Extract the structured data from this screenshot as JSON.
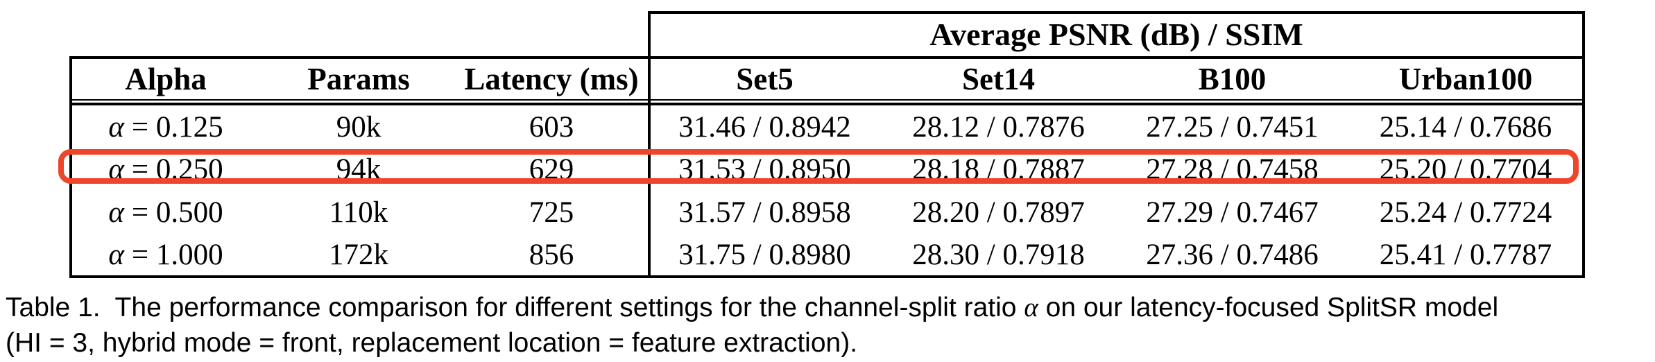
{
  "table": {
    "span_header": "Average PSNR (dB) / SSIM",
    "left_headers": [
      "Alpha",
      "Params",
      "Latency (ms)"
    ],
    "dataset_headers": [
      "Set5",
      "Set14",
      "B100",
      "Urban100"
    ],
    "alpha_symbol": "α",
    "rows": [
      {
        "alpha": "α = 0.125",
        "alpha_eq": "= 0.125",
        "params": "90k",
        "latency": "603",
        "set5": "31.46 / 0.8942",
        "set14": "28.12 / 0.7876",
        "b100": "27.25 / 0.7451",
        "urban100": "25.14 / 0.7686",
        "highlighted": false
      },
      {
        "alpha": "α = 0.250",
        "alpha_eq": "= 0.250",
        "params": "94k",
        "latency": "629",
        "set5": "31.53 / 0.8950",
        "set14": "28.18 / 0.7887",
        "b100": "27.28 / 0.7458",
        "urban100": "25.20 / 0.7704",
        "highlighted": true
      },
      {
        "alpha": "α = 0.500",
        "alpha_eq": "= 0.500",
        "params": "110k",
        "latency": "725",
        "set5": "31.57 / 0.8958",
        "set14": "28.20 / 0.7897",
        "b100": "27.29 / 0.7467",
        "urban100": "25.24 / 0.7724",
        "highlighted": false
      },
      {
        "alpha": "α = 1.000",
        "alpha_eq": "= 1.000",
        "params": "172k",
        "latency": "856",
        "set5": "31.75 / 0.8980",
        "set14": "28.30 / 0.7918",
        "b100": "27.36 / 0.7486",
        "urban100": "25.41 / 0.7787",
        "highlighted": false
      }
    ],
    "highlight": {
      "row_index": 1,
      "color": "#ee452b"
    }
  },
  "caption": {
    "line1_pre": "Table 1.  The performance comparison for different settings for the channel-split ratio ",
    "alpha_symbol": "α",
    "line1_post": " on our latency-focused SplitSR model",
    "line2": "(HI = 3, hybrid mode = front, replacement location = feature extraction)."
  },
  "colors": {
    "background": "#ffffff",
    "text": "#000000",
    "border": "#000000",
    "highlight": "#ee452b"
  }
}
